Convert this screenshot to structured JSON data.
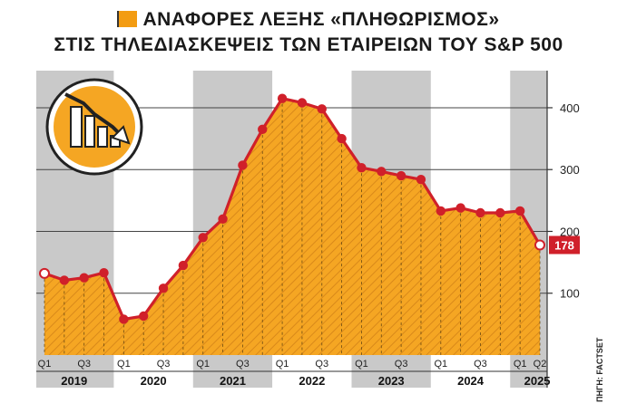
{
  "title": {
    "line1": "ΑΝΑΦΟΡΕΣ ΛΕΞΗΣ «ΠΛΗΘΩΡΙΣΜΟΣ»",
    "line2": "ΣΤΙΣ ΤΗΛΕΔΙΑΣΚΕΨΕΙΣ ΤΩΝ ΕΤΑΙΡΕΙΩΝ ΤΟΥ S&P 500"
  },
  "source": "ΠΗΓΗ: FACTSET",
  "icons": {
    "title_icon": "down-arrow-badge-icon",
    "chart_icon": "falling-bar-chart-icon"
  },
  "colors": {
    "line": "#d0202a",
    "fill": "#f5a623",
    "band_gray": "#c9c9c9",
    "label_bg": "#d0202a"
  },
  "chart_data": {
    "type": "area",
    "ylim": [
      0,
      460
    ],
    "yticks": [
      100,
      200,
      300,
      400
    ],
    "grid": true,
    "x_quarter_labels": [
      "Q1",
      "Q3",
      "Q1",
      "Q3",
      "Q1",
      "Q3",
      "Q1",
      "Q3",
      "Q1",
      "Q3",
      "Q1",
      "Q3",
      "Q1",
      "Q2"
    ],
    "years": [
      "2019",
      "2020",
      "2021",
      "2022",
      "2023",
      "2024",
      "2025"
    ],
    "series": [
      {
        "values": [
          132,
          121,
          125,
          133,
          58,
          63,
          108,
          145,
          190,
          220,
          307,
          365,
          415,
          408,
          398,
          350,
          303,
          297,
          290,
          284,
          233,
          238,
          230,
          230,
          233,
          178
        ]
      }
    ],
    "last_value_label": "178"
  }
}
